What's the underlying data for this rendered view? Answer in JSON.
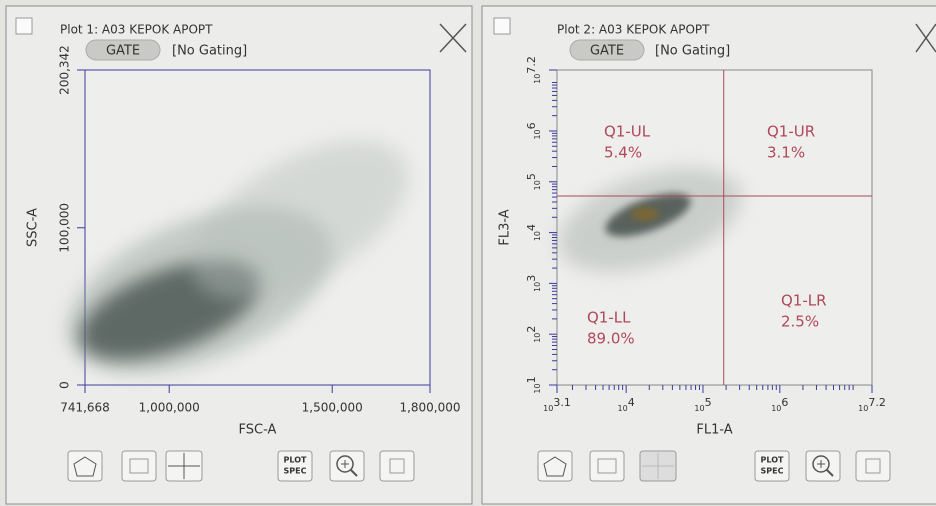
{
  "panels": [
    {
      "title": "Plot 1: A03 KEPOK APOPT",
      "gate_button": "GATE",
      "gating": "[No Gating]",
      "plot_spec_button": [
        "PLOT",
        "SPEC"
      ],
      "x_axis": {
        "label": "FSC-A",
        "lim": [
          741668,
          1800000
        ],
        "ticks": [
          {
            "value": 741668,
            "label": "741,668"
          },
          {
            "value": 1000000,
            "label": "1,000,000"
          },
          {
            "value": 1500000,
            "label": "1,500,000"
          },
          {
            "value": 1800000,
            "label": "1,800,000"
          }
        ]
      },
      "y_axis": {
        "label": "SSC-A",
        "lim": [
          0,
          200342
        ],
        "ticks": [
          0,
          {
            "value": 100000,
            "label": "100,000"
          },
          {
            "value": 200342,
            "label": "200,342"
          }
        ]
      }
    },
    {
      "title": "Plot 2: A03 KEPOK APOPT",
      "gate_button": "GATE",
      "gating": "[No Gating]",
      "plot_spec_button": [
        "PLOT",
        "SPEC"
      ],
      "log_scale": true,
      "x_axis": {
        "label": "FL1-A",
        "lim": [
          3.1,
          7.2
        ],
        "ticks": [
          {
            "value": 3.1,
            "base": "10",
            "exponent": "3.1"
          },
          {
            "value": 4,
            "base": "10",
            "exponent": "4"
          },
          {
            "value": 5,
            "base": "10",
            "exponent": "5"
          },
          {
            "value": 6,
            "base": "10",
            "exponent": "6"
          },
          {
            "value": 7.2,
            "base": "10",
            "exponent": "7.2"
          }
        ]
      },
      "y_axis": {
        "label": "FL3-A",
        "lim": [
          1,
          7.2
        ],
        "ticks": [
          {
            "value": 1,
            "base": "10",
            "exponent": "1"
          },
          {
            "value": 2,
            "base": "10",
            "exponent": "2"
          },
          {
            "value": 3,
            "base": "10",
            "exponent": "3"
          },
          {
            "value": 4,
            "base": "10",
            "exponent": "4"
          },
          {
            "value": 5,
            "base": "10",
            "exponent": "5"
          },
          {
            "value": 6,
            "base": "10",
            "exponent": "6"
          },
          {
            "value": 7.2,
            "base": "10",
            "exponent": "7.2"
          }
        ]
      },
      "quadrant_gate": {
        "x": 5.27,
        "y": 4.72
      },
      "quadrants": [
        {
          "name": "Q1-UL",
          "percent": "5.4%"
        },
        {
          "name": "Q1-UR",
          "percent": "3.1%"
        },
        {
          "name": "Q1-LL",
          "percent": "89.0%"
        },
        {
          "name": "Q1-LR",
          "percent": "2.5%"
        }
      ]
    }
  ]
}
